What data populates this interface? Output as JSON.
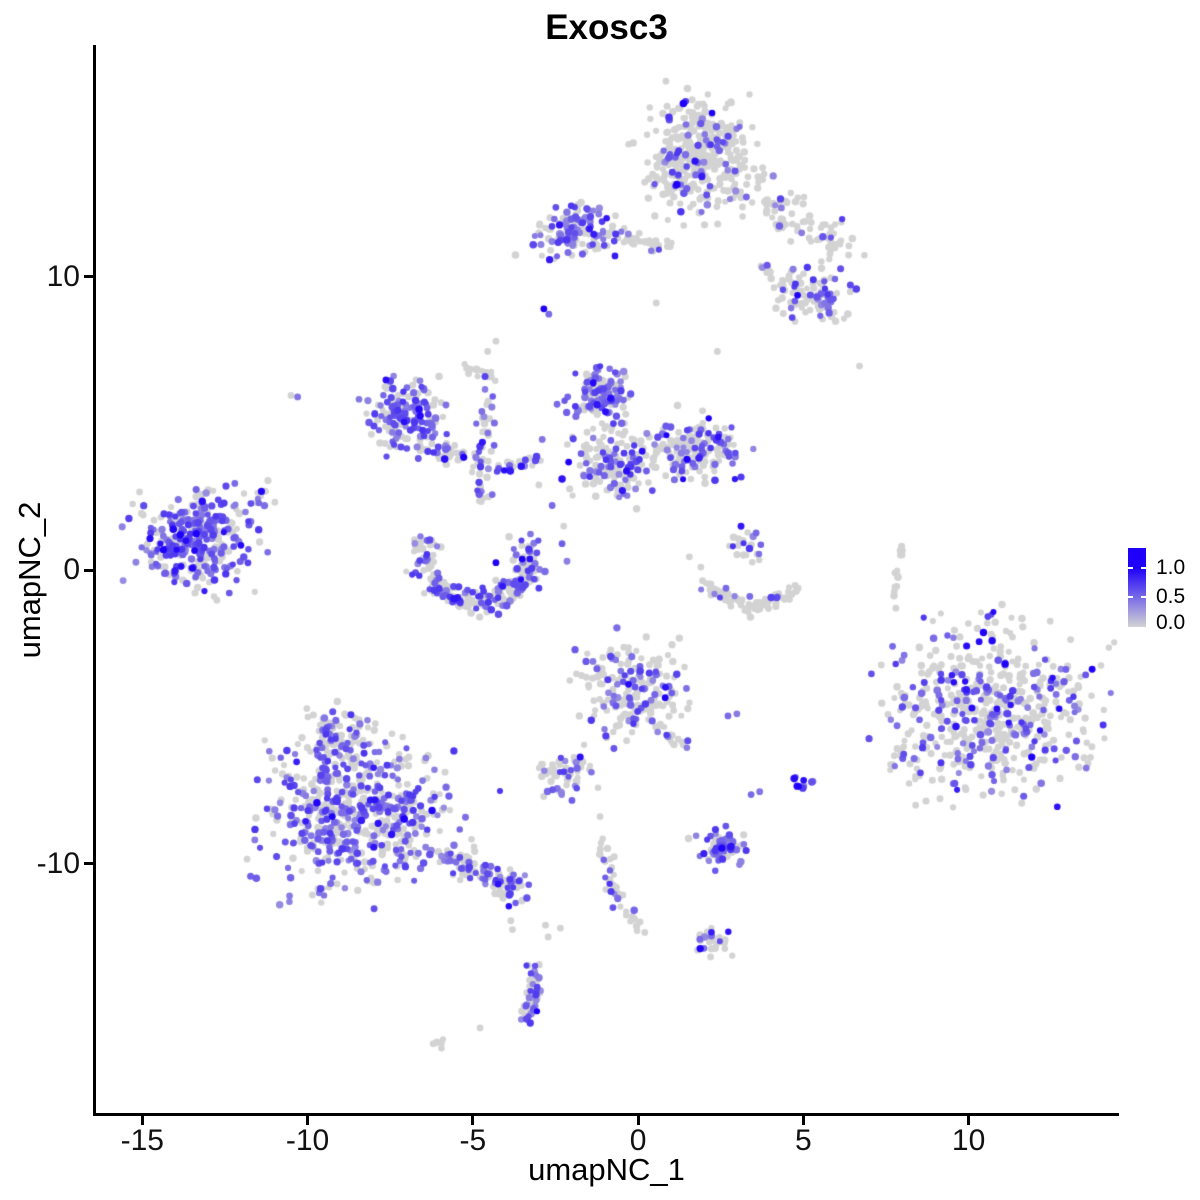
{
  "title": "Exosc3",
  "axes": {
    "x": {
      "label": "umapNC_1",
      "ticks": [
        "-15",
        "-10",
        "-5",
        "0",
        "5",
        "10"
      ],
      "tick_values": [
        -15,
        -10,
        -5,
        0,
        5,
        10
      ]
    },
    "y": {
      "label": "umapNC_2",
      "ticks": [
        "10",
        "0",
        "-10"
      ],
      "tick_values": [
        10,
        0,
        -10
      ]
    }
  },
  "legend": {
    "labels": [
      "1.0",
      "0.5",
      "0.0"
    ],
    "values": [
      1.0,
      0.5,
      0.0
    ],
    "max_value": 1.33,
    "color_low": "#d3d3d3",
    "color_high": "#1e00fa"
  },
  "chart_data": {
    "type": "scatter",
    "title": "Exosc3",
    "xlabel": "umapNC_1",
    "ylabel": "umapNC_2",
    "xlim": [
      -16.43,
      14.52
    ],
    "ylim": [
      -18.5,
      17.89
    ],
    "grid": false,
    "legend_position": "right",
    "point_radius_px": 3.4,
    "color_scale": {
      "low": "#d3d3d3",
      "high": "#1e00fa",
      "breaks": [
        0.0,
        0.5,
        1.0
      ]
    },
    "clusters": [
      {
        "name": "top-main",
        "shape": "blob",
        "cx": 1.8,
        "cy": 14.1,
        "rx": 1.5,
        "ry": 1.8,
        "n": 390,
        "frac": 0.15,
        "dark": 0.08
      },
      {
        "name": "top-fringe",
        "shape": "line",
        "x1": -0.6,
        "y1": 11.6,
        "x2": 0.7,
        "y2": 10.95,
        "jitter": 0.3,
        "n": 12,
        "frac": 0.1
      },
      {
        "name": "top-arm",
        "shape": "line",
        "x1": 3.1,
        "y1": 13.0,
        "x2": 6.3,
        "y2": 11.0,
        "jitter": 0.55,
        "n": 85,
        "frac": 0.15
      },
      {
        "name": "arm-bridge",
        "shape": "line",
        "x1": 3.7,
        "y1": 10.4,
        "x2": 4.6,
        "y2": 9.7,
        "jitter": 0.25,
        "n": 16,
        "frac": 0.2
      },
      {
        "name": "upper-right-sub",
        "shape": "blob",
        "cx": 5.3,
        "cy": 9.3,
        "rx": 1.15,
        "ry": 0.95,
        "n": 95,
        "frac": 0.3,
        "dark": 0.06
      },
      {
        "name": "top-left-cluster",
        "shape": "blob",
        "cx": -1.9,
        "cy": 11.5,
        "rx": 1.45,
        "ry": 0.95,
        "n": 125,
        "frac": 0.5
      },
      {
        "name": "top-left-trail",
        "shape": "line",
        "x1": -0.5,
        "y1": 11.2,
        "x2": 1.35,
        "y2": 11.1,
        "jitter": 0.12,
        "n": 14,
        "frac": 0.1
      },
      {
        "name": "mid-left-head",
        "shape": "blob",
        "cx": -7.1,
        "cy": 5.3,
        "rx": 1.05,
        "ry": 1.2,
        "n": 150,
        "frac": 0.55
      },
      {
        "name": "mid-left-chain",
        "shape": "line",
        "x1": -6.6,
        "y1": 4.35,
        "x2": -4.8,
        "y2": 3.55,
        "jitter": 0.28,
        "n": 48,
        "frac": 0.4
      },
      {
        "name": "v-chain",
        "shape": "line",
        "x1": -4.5,
        "y1": 6.6,
        "x2": -4.75,
        "y2": 2.1,
        "jitter": 0.22,
        "n": 42,
        "frac": 0.3
      },
      {
        "name": "v-hook",
        "shape": "line",
        "x1": -5.3,
        "y1": 7.0,
        "x2": -4.5,
        "y2": 6.6,
        "jitter": 0.18,
        "n": 12,
        "frac": 0.25
      },
      {
        "name": "v-arc",
        "shape": "line",
        "x1": -4.35,
        "y1": 3.3,
        "x2": -3.0,
        "y2": 3.9,
        "jitter": 0.22,
        "n": 22,
        "frac": 0.45
      },
      {
        "name": "center-head",
        "shape": "blob",
        "cx": -1.05,
        "cy": 5.95,
        "rx": 0.85,
        "ry": 0.85,
        "n": 130,
        "frac": 0.6
      },
      {
        "name": "center-body",
        "shape": "blob",
        "cx": -0.8,
        "cy": 3.6,
        "rx": 1.1,
        "ry": 1.2,
        "n": 160,
        "frac": 0.32
      },
      {
        "name": "center-right-lobe",
        "shape": "blob",
        "cx": 1.75,
        "cy": 4.1,
        "rx": 1.3,
        "ry": 1.0,
        "n": 160,
        "frac": 0.35
      },
      {
        "name": "left-cluster",
        "shape": "blob",
        "cx": -13.3,
        "cy": 1.0,
        "rx": 1.8,
        "ry": 1.55,
        "n": 330,
        "frac": 0.62
      },
      {
        "name": "left-trail",
        "shape": "line",
        "x1": -11.7,
        "y1": 2.1,
        "x2": -11.3,
        "y2": 2.85,
        "jitter": 0.14,
        "n": 8,
        "frac": 0.6
      },
      {
        "name": "crescent",
        "shape": "arc",
        "cx": -4.85,
        "cy": 0.45,
        "rx": 1.6,
        "ry": 1.5,
        "a1": 155,
        "a2": 385,
        "jitter": 0.3,
        "n": 240,
        "frac": 0.42
      },
      {
        "name": "boomerang-top",
        "shape": "blob",
        "cx": 3.3,
        "cy": 0.85,
        "rx": 0.5,
        "ry": 0.55,
        "n": 22,
        "frac": 0.55
      },
      {
        "name": "boomerang-left",
        "shape": "line",
        "x1": 1.9,
        "y1": -0.45,
        "x2": 3.4,
        "y2": -1.35,
        "jitter": 0.2,
        "n": 42,
        "frac": 0.05
      },
      {
        "name": "boomerang-right",
        "shape": "line",
        "x1": 3.4,
        "y1": -1.35,
        "x2": 4.75,
        "y2": -0.7,
        "jitter": 0.2,
        "n": 40,
        "frac": 0.05
      },
      {
        "name": "grey-strip",
        "shape": "line",
        "x1": 7.95,
        "y1": 0.9,
        "x2": 7.8,
        "y2": -0.95,
        "jitter": 0.07,
        "n": 15,
        "frac": 0
      },
      {
        "name": "center-bottom",
        "shape": "blob",
        "cx": -0.2,
        "cy": -4.05,
        "rx": 1.45,
        "ry": 1.65,
        "n": 185,
        "frac": 0.3
      },
      {
        "name": "center-bottom-tail",
        "shape": "line",
        "x1": 0.5,
        "y1": -5.35,
        "x2": 1.45,
        "y2": -5.95,
        "jitter": 0.18,
        "n": 20,
        "frac": 0.25
      },
      {
        "name": "big-right",
        "shape": "blob",
        "cx": 10.55,
        "cy": -4.7,
        "rx": 2.85,
        "ry": 2.75,
        "n": 560,
        "frac": 0.3,
        "dark": 0.13
      },
      {
        "name": "big-right-tip",
        "shape": "line",
        "x1": 7.9,
        "y1": -6.2,
        "x2": 8.6,
        "y2": -7.15,
        "jitter": 0.18,
        "n": 13,
        "frac": 0.3
      },
      {
        "name": "bottom-left-main",
        "shape": "blob",
        "cx": -8.5,
        "cy": -8.25,
        "rx": 2.7,
        "ry": 2.6,
        "n": 580,
        "frac": 0.5,
        "dark": 0.04
      },
      {
        "name": "bottom-left-knob",
        "shape": "blob",
        "cx": -9.0,
        "cy": -5.6,
        "rx": 0.9,
        "ry": 0.85,
        "n": 72,
        "frac": 0.5
      },
      {
        "name": "bottom-left-tail",
        "shape": "line",
        "x1": -5.7,
        "y1": -9.75,
        "x2": -3.55,
        "y2": -10.95,
        "jitter": 0.38,
        "n": 105,
        "frac": 0.45
      },
      {
        "name": "small-mid",
        "shape": "blob",
        "cx": -2.2,
        "cy": -6.95,
        "rx": 0.78,
        "ry": 0.65,
        "n": 55,
        "frac": 0.35
      },
      {
        "name": "clump-five",
        "shape": "blob",
        "cx": 4.95,
        "cy": -7.3,
        "rx": 0.3,
        "ry": 0.38,
        "n": 9,
        "frac": 0.95,
        "dark": 0.4
      },
      {
        "name": "dense-small",
        "shape": "blob",
        "cx": 2.5,
        "cy": -9.4,
        "rx": 0.78,
        "ry": 0.55,
        "n": 66,
        "frac": 0.72
      },
      {
        "name": "chain-a",
        "shape": "line",
        "x1": -1.06,
        "y1": -9.25,
        "x2": -0.8,
        "y2": -10.75,
        "jitter": 0.16,
        "n": 18,
        "frac": 0.3
      },
      {
        "name": "chain-b",
        "shape": "line",
        "x1": -0.8,
        "y1": -10.75,
        "x2": 0.08,
        "y2": -12.3,
        "jitter": 0.16,
        "n": 20,
        "frac": 0.35
      },
      {
        "name": "small-bottom",
        "shape": "blob",
        "cx": 2.3,
        "cy": -12.65,
        "rx": 0.52,
        "ry": 0.42,
        "n": 28,
        "frac": 0.3
      },
      {
        "name": "bottom-arc-a",
        "shape": "line",
        "x1": -3.25,
        "y1": -13.35,
        "x2": -3.1,
        "y2": -14.5,
        "jitter": 0.2,
        "n": 22,
        "frac": 0.55
      },
      {
        "name": "bottom-arc-b",
        "shape": "line",
        "x1": -3.1,
        "y1": -14.5,
        "x2": -3.6,
        "y2": -15.45,
        "jitter": 0.2,
        "n": 24,
        "frac": 0.65
      },
      {
        "name": "tiny-grey",
        "shape": "blob",
        "cx": -6.05,
        "cy": -16.15,
        "rx": 0.3,
        "ry": 0.15,
        "n": 7,
        "frac": 0
      }
    ],
    "singles": [
      [
        -2.85,
        8.9,
        1.0
      ],
      [
        -2.7,
        8.72,
        0.5
      ],
      [
        6.7,
        6.95,
        0
      ],
      [
        0.55,
        9.1,
        0
      ],
      [
        2.4,
        7.45,
        0
      ],
      [
        -4.55,
        7.45,
        0
      ],
      [
        -4.3,
        7.8,
        0
      ],
      [
        -10.5,
        5.95,
        0
      ],
      [
        -10.3,
        5.9,
        0.45
      ],
      [
        -2.1,
        3.68,
        1.0
      ],
      [
        -2.45,
        5.65,
        0.5
      ],
      [
        -2.9,
        4.45,
        0.45
      ],
      [
        -3.0,
        2.9,
        0
      ],
      [
        -2.6,
        2.2,
        0.5
      ],
      [
        -2.25,
        1.5,
        0
      ],
      [
        -2.3,
        0.9,
        0.55
      ],
      [
        -2.15,
        0.3,
        0.4
      ],
      [
        -4.3,
        0.25,
        1.0
      ],
      [
        1.9,
        0.1,
        0
      ],
      [
        1.55,
        0.45,
        0
      ],
      [
        2.66,
        -0.62,
        0.5
      ],
      [
        3.38,
        -0.9,
        0.5
      ],
      [
        7.8,
        -1.3,
        0
      ],
      [
        0.82,
        -4.35,
        1.0
      ],
      [
        2.72,
        -4.97,
        0.5
      ],
      [
        2.99,
        -4.9,
        0.42
      ],
      [
        7.7,
        -2.6,
        0.5
      ],
      [
        8.05,
        -2.9,
        0.45
      ],
      [
        -9.25,
        -8.4,
        1.0
      ],
      [
        -2.0,
        -7.85,
        0.55
      ],
      [
        -1.15,
        -8.4,
        0
      ],
      [
        3.42,
        -7.65,
        0.5
      ],
      [
        3.68,
        -7.55,
        0.45
      ],
      [
        -0.76,
        -11.5,
        0.6
      ],
      [
        -2.72,
        -12.5,
        0
      ],
      [
        -2.8,
        -12.1,
        0
      ],
      [
        -2.35,
        -12.2,
        0
      ],
      [
        -3.85,
        -11.95,
        0
      ],
      [
        -3.8,
        -12.25,
        0
      ],
      [
        -4.78,
        -15.6,
        0
      ],
      [
        -12.2,
        2.95,
        0.5
      ]
    ]
  }
}
